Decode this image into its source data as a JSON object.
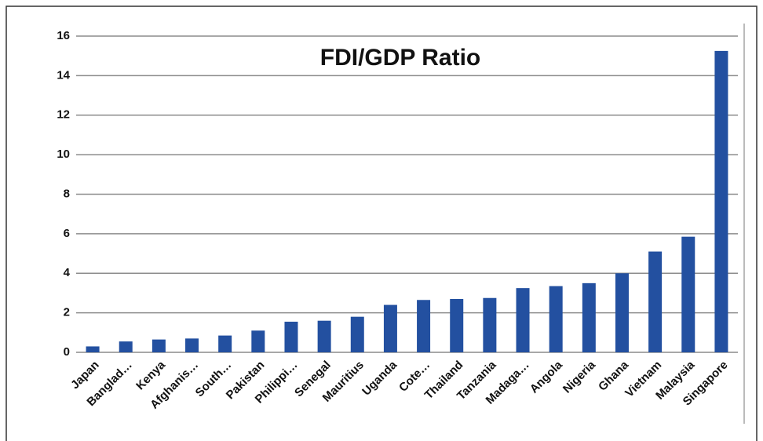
{
  "chart_data": {
    "type": "bar",
    "title": "FDI/GDP Ratio",
    "categories": [
      "Japan",
      "Banglad…",
      "Kenya",
      "Afghanis…",
      "South…",
      "Pakistan",
      "Philippi…",
      "Senegal",
      "Mauritius",
      "Uganda",
      "Cote…",
      "Thailand",
      "Tanzania",
      "Madaga…",
      "Angola",
      "Nigeria",
      "Ghana",
      "Vietnam",
      "Malaysia",
      "Singapore"
    ],
    "values": [
      0.3,
      0.55,
      0.65,
      0.7,
      0.85,
      1.1,
      1.55,
      1.6,
      1.8,
      2.4,
      2.65,
      2.7,
      2.75,
      3.25,
      3.35,
      3.5,
      4.0,
      5.1,
      5.85,
      15.25
    ],
    "color": "#2350a0",
    "ylim": [
      0,
      16
    ],
    "yticks": [
      0,
      2,
      4,
      6,
      8,
      10,
      12,
      14,
      16
    ],
    "grid": true
  }
}
